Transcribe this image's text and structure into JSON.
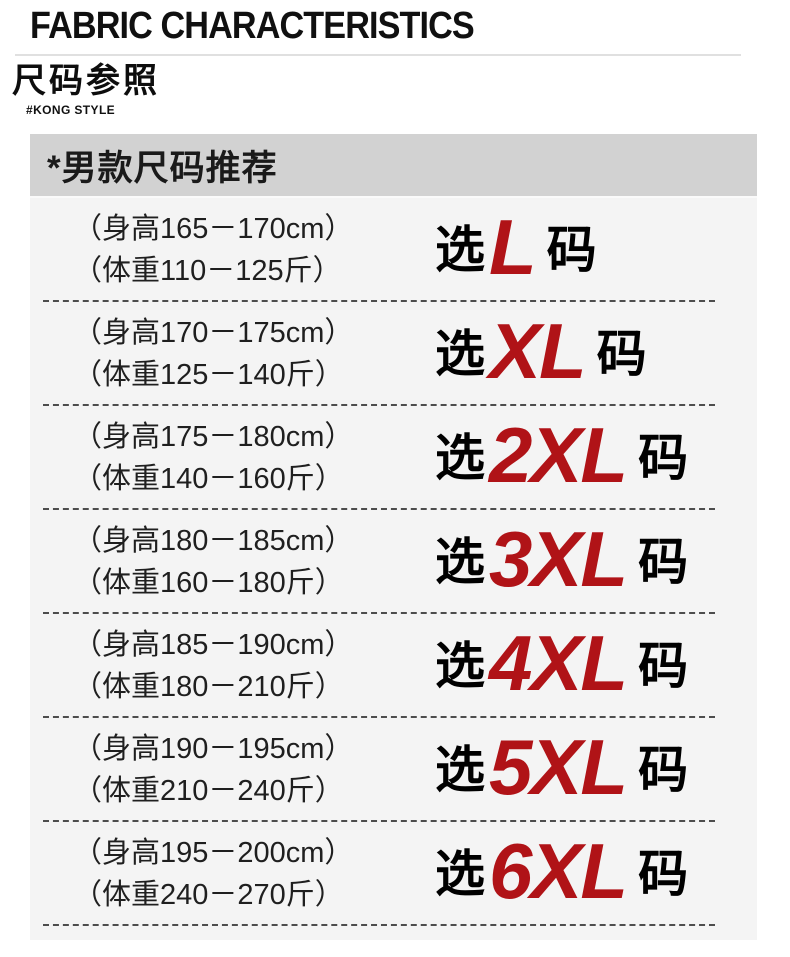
{
  "header": {
    "title_en": "FABRIC CHARACTERISTICS",
    "title_cn": "尺码参照",
    "subtitle": "#KONG STYLE"
  },
  "size_card": {
    "heading": "*男款尺码推荐",
    "choose_prefix": "选",
    "choose_suffix": "码",
    "rows": [
      {
        "height": "（身高165－170cm）",
        "weight": "（体重110－125斤）",
        "size": "L"
      },
      {
        "height": "（身高170－175cm）",
        "weight": "（体重125－140斤）",
        "size": "XL"
      },
      {
        "height": "（身高175－180cm）",
        "weight": "（体重140－160斤）",
        "size": "2XL"
      },
      {
        "height": "（身高180－185cm）",
        "weight": "（体重160－180斤）",
        "size": "3XL"
      },
      {
        "height": "（身高185－190cm）",
        "weight": "（体重180－210斤）",
        "size": "4XL"
      },
      {
        "height": "（身高190－195cm）",
        "weight": "（体重210－240斤）",
        "size": "5XL"
      },
      {
        "height": "（身高195－200cm）",
        "weight": "（体重240－270斤）",
        "size": "6XL"
      }
    ]
  },
  "colors": {
    "accent_red": "#b01317",
    "header_bar": "#d2d2d2",
    "card_bg": "#f4f4f4",
    "dash": "#4d4d4d"
  }
}
